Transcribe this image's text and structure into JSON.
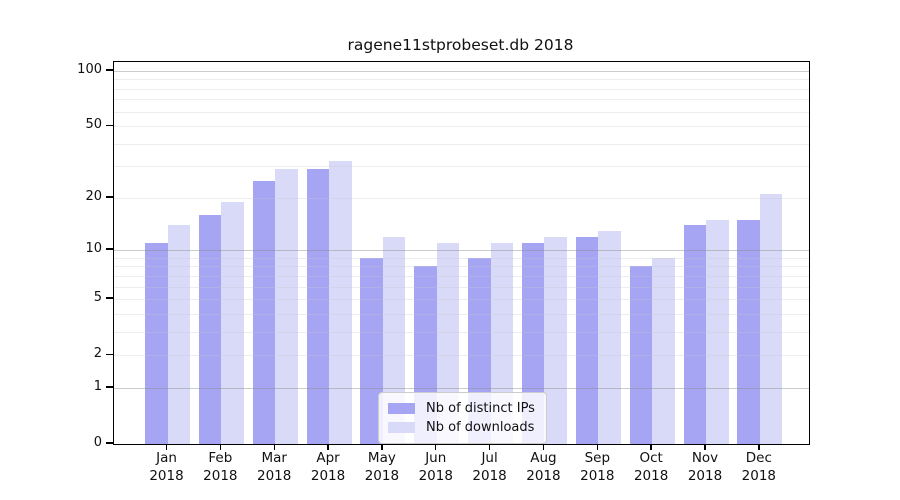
{
  "chart_data": {
    "type": "bar",
    "title": "ragene11stprobeset.db 2018",
    "categories": [
      "Jan",
      "Feb",
      "Mar",
      "Apr",
      "May",
      "Jun",
      "Jul",
      "Aug",
      "Sep",
      "Oct",
      "Nov",
      "Dec"
    ],
    "x_year_label": "2018",
    "series": [
      {
        "name": "Nb of distinct IPs",
        "color": "#a5a5f3",
        "values": [
          11,
          16,
          25,
          29,
          9,
          8,
          9,
          11,
          12,
          8,
          14,
          15
        ]
      },
      {
        "name": "Nb of downloads",
        "color": "#d9d9f8",
        "values": [
          14,
          19,
          29,
          32,
          12,
          11,
          11,
          12,
          13,
          9,
          15,
          21
        ]
      }
    ],
    "yscale": "log1p",
    "ylim": [
      0,
      112
    ],
    "y_ticks": [
      100,
      50,
      20,
      10,
      5,
      2,
      1,
      0
    ],
    "y_major_gridlines": [
      1,
      10,
      100
    ],
    "y_minor_gridlines": [
      2,
      3,
      4,
      5,
      6,
      7,
      8,
      9,
      20,
      30,
      40,
      50,
      60,
      70,
      80,
      90
    ],
    "grid": true,
    "legend_position": "lower-center"
  }
}
